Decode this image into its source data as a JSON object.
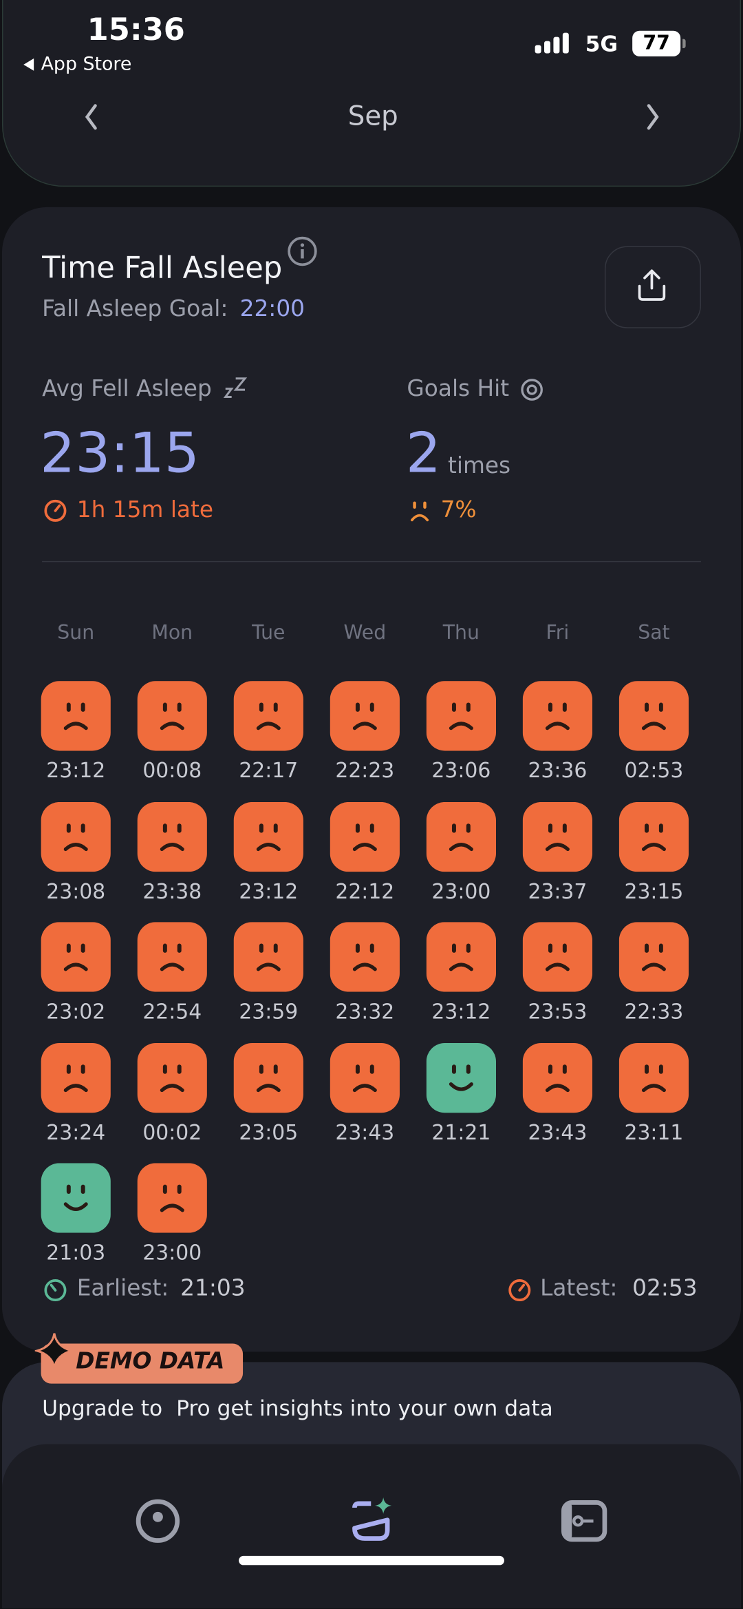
{
  "status_bar": {
    "time": "15:36",
    "back_label": "App Store",
    "network": "5G",
    "battery": "77"
  },
  "month_nav": {
    "month": "Sep"
  },
  "card": {
    "title": "Time Fall Asleep",
    "goal_label": "Fall Asleep Goal:",
    "goal_time": "22:00",
    "avg_label": "Avg Fell Asleep",
    "avg_time": "23:15",
    "late_text": "1h 15m late",
    "goals_label": "Goals Hit",
    "goals_count": "2",
    "goals_unit": "times",
    "goals_percent": "7%",
    "weekdays": [
      "Sun",
      "Mon",
      "Tue",
      "Wed",
      "Thu",
      "Fri",
      "Sat"
    ],
    "days": [
      {
        "time": "23:12",
        "hit": false
      },
      {
        "time": "00:08",
        "hit": false
      },
      {
        "time": "22:17",
        "hit": false
      },
      {
        "time": "22:23",
        "hit": false
      },
      {
        "time": "23:06",
        "hit": false
      },
      {
        "time": "23:36",
        "hit": false
      },
      {
        "time": "02:53",
        "hit": false
      },
      {
        "time": "23:08",
        "hit": false
      },
      {
        "time": "23:38",
        "hit": false
      },
      {
        "time": "23:12",
        "hit": false
      },
      {
        "time": "22:12",
        "hit": false
      },
      {
        "time": "23:00",
        "hit": false
      },
      {
        "time": "23:37",
        "hit": false
      },
      {
        "time": "23:15",
        "hit": false
      },
      {
        "time": "23:02",
        "hit": false
      },
      {
        "time": "22:54",
        "hit": false
      },
      {
        "time": "23:59",
        "hit": false
      },
      {
        "time": "23:32",
        "hit": false
      },
      {
        "time": "23:12",
        "hit": false
      },
      {
        "time": "23:53",
        "hit": false
      },
      {
        "time": "22:33",
        "hit": false
      },
      {
        "time": "23:24",
        "hit": false
      },
      {
        "time": "00:02",
        "hit": false
      },
      {
        "time": "23:05",
        "hit": false
      },
      {
        "time": "23:43",
        "hit": false
      },
      {
        "time": "21:21",
        "hit": true
      },
      {
        "time": "23:43",
        "hit": false
      },
      {
        "time": "23:11",
        "hit": false
      },
      {
        "time": "21:03",
        "hit": true
      },
      {
        "time": "23:00",
        "hit": false
      }
    ],
    "earliest_label": "Earliest:",
    "earliest_time": "21:03",
    "latest_label": "Latest:",
    "latest_time": "02:53"
  },
  "promo": {
    "badge": "DEMO DATA",
    "text": "Upgrade to  Pro get insights into your own data"
  }
}
